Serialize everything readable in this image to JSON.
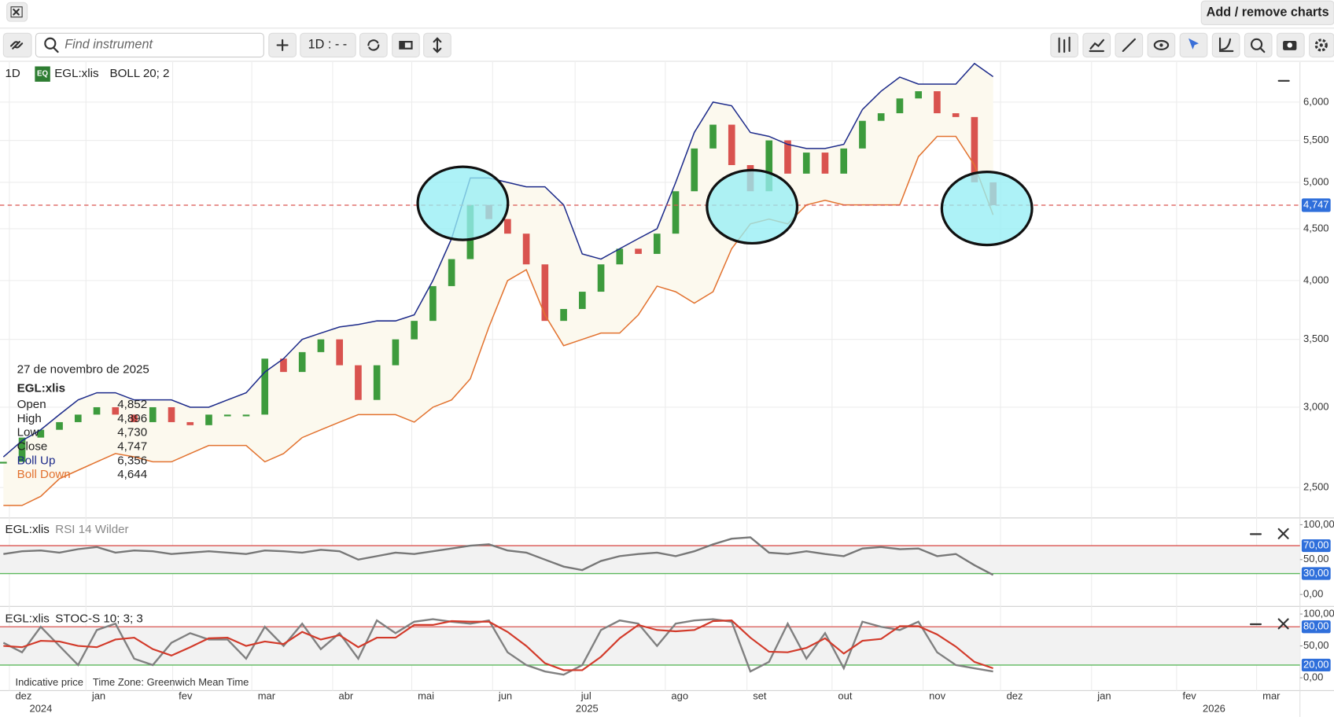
{
  "toolbar": {
    "add_remove": "Add / remove charts",
    "search_placeholder": "Find instrument",
    "interval_button": "1D : - -"
  },
  "x_axis": {
    "months": [
      "dez",
      "jan",
      "fev",
      "mar",
      "abr",
      "mai",
      "jun",
      "jul",
      "ago",
      "set",
      "out",
      "nov",
      "dez",
      "jan",
      "fev",
      "mar"
    ],
    "years": [
      "2024",
      "2025",
      "2026"
    ]
  },
  "info": {
    "date": "27 de novembro de 2025",
    "instrument": "EGL:xlis",
    "rows": [
      {
        "label": "Open",
        "value": "4,852"
      },
      {
        "label": "High",
        "value": "4,896"
      },
      {
        "label": "Low",
        "value": "4,730"
      },
      {
        "label": "Close",
        "value": "4,747"
      },
      {
        "label": "Boll Up",
        "value": "6,356"
      },
      {
        "label": "Boll Down",
        "value": "4,644"
      }
    ]
  },
  "footer": {
    "price_note": "Indicative price",
    "timezone": "Time Zone: Greenwich Mean Time"
  },
  "chart_data": [
    {
      "type": "bollinger",
      "interval": "1D",
      "badge": "EQ",
      "instrument": "EGL:xlis",
      "indicator": "BOLL 20; 2",
      "log_scale": true,
      "grid": true,
      "ylim": [
        2360,
        6570
      ],
      "yticks": [
        {
          "value": 2500,
          "label": "2,500"
        },
        {
          "value": 3000,
          "label": "3,000"
        },
        {
          "value": 3500,
          "label": "3,500"
        },
        {
          "value": 4000,
          "label": "4,000"
        },
        {
          "value": 4500,
          "label": "4,500"
        },
        {
          "value": 5000,
          "label": "5,000"
        },
        {
          "value": 5500,
          "label": "5,500"
        },
        {
          "value": 6000,
          "label": "6,000"
        }
      ],
      "price_line": {
        "value": 4747,
        "label": "4,747",
        "color": "#d9534f"
      },
      "band_color": "#fcf9ee",
      "series": [
        {
          "name": "Close",
          "color": "#d9534f",
          "up_color": "#3d9b3d",
          "values": [
            2650,
            2800,
            2850,
            2900,
            2950,
            3000,
            2950,
            2900,
            3000,
            2900,
            2880,
            2950,
            2950,
            2950,
            3350,
            3250,
            3400,
            3500,
            3300,
            3050,
            3300,
            3500,
            3650,
            3950,
            4200,
            4750,
            4600,
            4450,
            4150,
            3650,
            3750,
            3900,
            4150,
            4300,
            4250,
            4450,
            4900,
            5400,
            5700,
            5200,
            4900,
            5500,
            5100,
            5350,
            5100,
            5400,
            5750,
            5850,
            6050,
            6150,
            5850,
            5800,
            5000,
            4747
          ]
        },
        {
          "name": "Boll Up",
          "color": "#1c2a8a",
          "values": [
            2680,
            2780,
            2850,
            2950,
            3050,
            3100,
            3100,
            3050,
            3050,
            3050,
            3000,
            3000,
            3050,
            3100,
            3250,
            3350,
            3500,
            3550,
            3600,
            3620,
            3650,
            3650,
            3700,
            4000,
            4400,
            5050,
            5050,
            5000,
            4950,
            4950,
            4750,
            4250,
            4200,
            4300,
            4400,
            4500,
            5000,
            5600,
            6000,
            5950,
            5600,
            5550,
            5450,
            5400,
            5400,
            5450,
            5900,
            6150,
            6350,
            6250,
            6250,
            6250,
            6550,
            6356
          ]
        },
        {
          "name": "Boll Down",
          "color": "#e2722f",
          "values": [
            2400,
            2400,
            2450,
            2550,
            2600,
            2650,
            2700,
            2680,
            2650,
            2650,
            2700,
            2750,
            2750,
            2750,
            2650,
            2700,
            2800,
            2850,
            2900,
            2950,
            2950,
            2950,
            2900,
            3000,
            3050,
            3200,
            3600,
            4000,
            4100,
            3700,
            3450,
            3500,
            3550,
            3550,
            3700,
            3950,
            3900,
            3800,
            3900,
            4300,
            4550,
            4600,
            4550,
            4750,
            4800,
            4750,
            4750,
            4750,
            4750,
            5300,
            5550,
            5550,
            5200,
            4644
          ]
        }
      ]
    },
    {
      "type": "oscillator",
      "instrument": "EGL:xlis",
      "indicator": "RSI 14 Wilder",
      "ylim": [
        0,
        100
      ],
      "yticks": [
        {
          "value": 0,
          "label": "0,00"
        },
        {
          "value": 50,
          "label": "50,00"
        },
        {
          "value": 100,
          "label": "100,00"
        }
      ],
      "levels": [
        {
          "value": 70,
          "label": "70,00",
          "color": "#d9534f"
        },
        {
          "value": 30,
          "label": "30,00",
          "color": "#5cb85c"
        }
      ],
      "series": [
        {
          "color": "#777777",
          "values": [
            58,
            62,
            63,
            60,
            65,
            68,
            60,
            63,
            62,
            58,
            60,
            62,
            60,
            58,
            63,
            62,
            60,
            64,
            62,
            50,
            55,
            60,
            58,
            62,
            66,
            70,
            72,
            63,
            60,
            50,
            40,
            35,
            48,
            55,
            58,
            60,
            55,
            62,
            72,
            80,
            82,
            60,
            58,
            62,
            58,
            55,
            66,
            68,
            65,
            66,
            55,
            58,
            42,
            28
          ]
        }
      ]
    },
    {
      "type": "oscillator",
      "instrument": "EGL:xlis",
      "indicator": "STOC-S 10; 3; 3",
      "ylim": [
        0,
        100
      ],
      "yticks": [
        {
          "value": 0,
          "label": "0,00"
        },
        {
          "value": 50,
          "label": "50,00"
        },
        {
          "value": 100,
          "label": "100,00"
        }
      ],
      "levels": [
        {
          "value": 80,
          "label": "80,00",
          "color": "#d9534f"
        },
        {
          "value": 20,
          "label": "20,00",
          "color": "#5cb85c"
        }
      ],
      "series": [
        {
          "color": "#808080",
          "values": [
            55,
            40,
            80,
            50,
            20,
            75,
            85,
            30,
            20,
            55,
            70,
            60,
            60,
            30,
            80,
            50,
            85,
            45,
            70,
            30,
            90,
            70,
            88,
            92,
            88,
            85,
            90,
            40,
            20,
            10,
            5,
            20,
            75,
            90,
            85,
            50,
            85,
            90,
            92,
            88,
            10,
            25,
            85,
            30,
            70,
            15,
            88,
            80,
            75,
            88,
            40,
            20,
            15,
            10
          ]
        },
        {
          "color": "#d23a2a",
          "values": [
            50,
            48,
            58,
            57,
            50,
            48,
            60,
            63,
            45,
            35,
            48,
            62,
            63,
            50,
            57,
            53,
            72,
            60,
            67,
            48,
            63,
            63,
            83,
            83,
            89,
            88,
            88,
            72,
            50,
            23,
            12,
            12,
            33,
            62,
            83,
            75,
            73,
            75,
            89,
            90,
            63,
            41,
            40,
            47,
            62,
            38,
            58,
            61,
            81,
            81,
            68,
            49,
            25,
            15
          ]
        }
      ]
    }
  ]
}
